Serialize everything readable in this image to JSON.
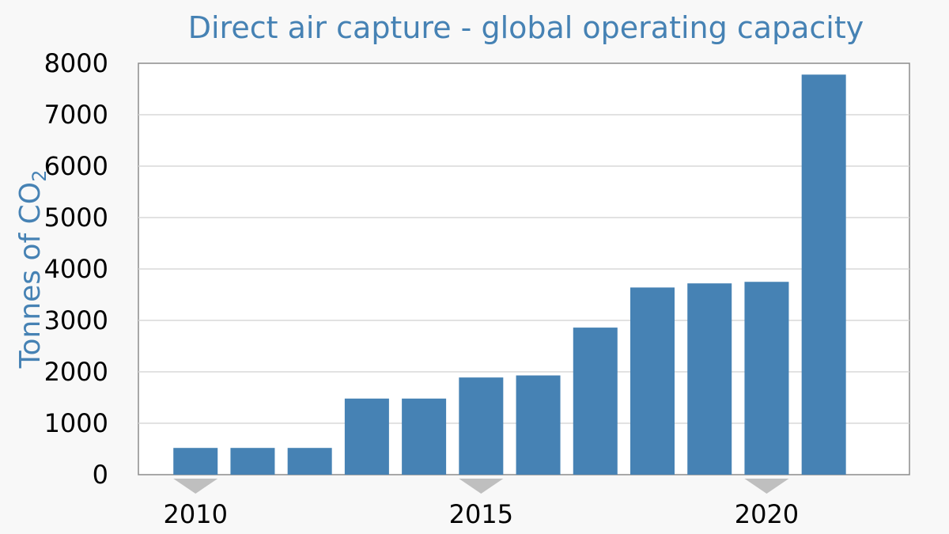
{
  "chart_data": {
    "type": "bar",
    "title": "Direct air capture - global operating capacity",
    "ylabel": "Tonnes of CO",
    "ylabel_subscript": "2",
    "xlabel": "",
    "x": [
      2010,
      2011,
      2012,
      2013,
      2014,
      2015,
      2016,
      2017,
      2018,
      2019,
      2020,
      2021
    ],
    "values": [
      520,
      520,
      520,
      1480,
      1480,
      1890,
      1930,
      2860,
      3640,
      3720,
      3750,
      7780
    ],
    "ylim": [
      0,
      8000
    ],
    "yticks": [
      0,
      1000,
      2000,
      3000,
      4000,
      5000,
      6000,
      7000,
      8000
    ],
    "xticks": [
      2010,
      2015,
      2020
    ],
    "xlim": [
      2009,
      2022.5
    ],
    "grid": true,
    "color": "#4682b4",
    "marker_color": "#bfbfbf"
  }
}
